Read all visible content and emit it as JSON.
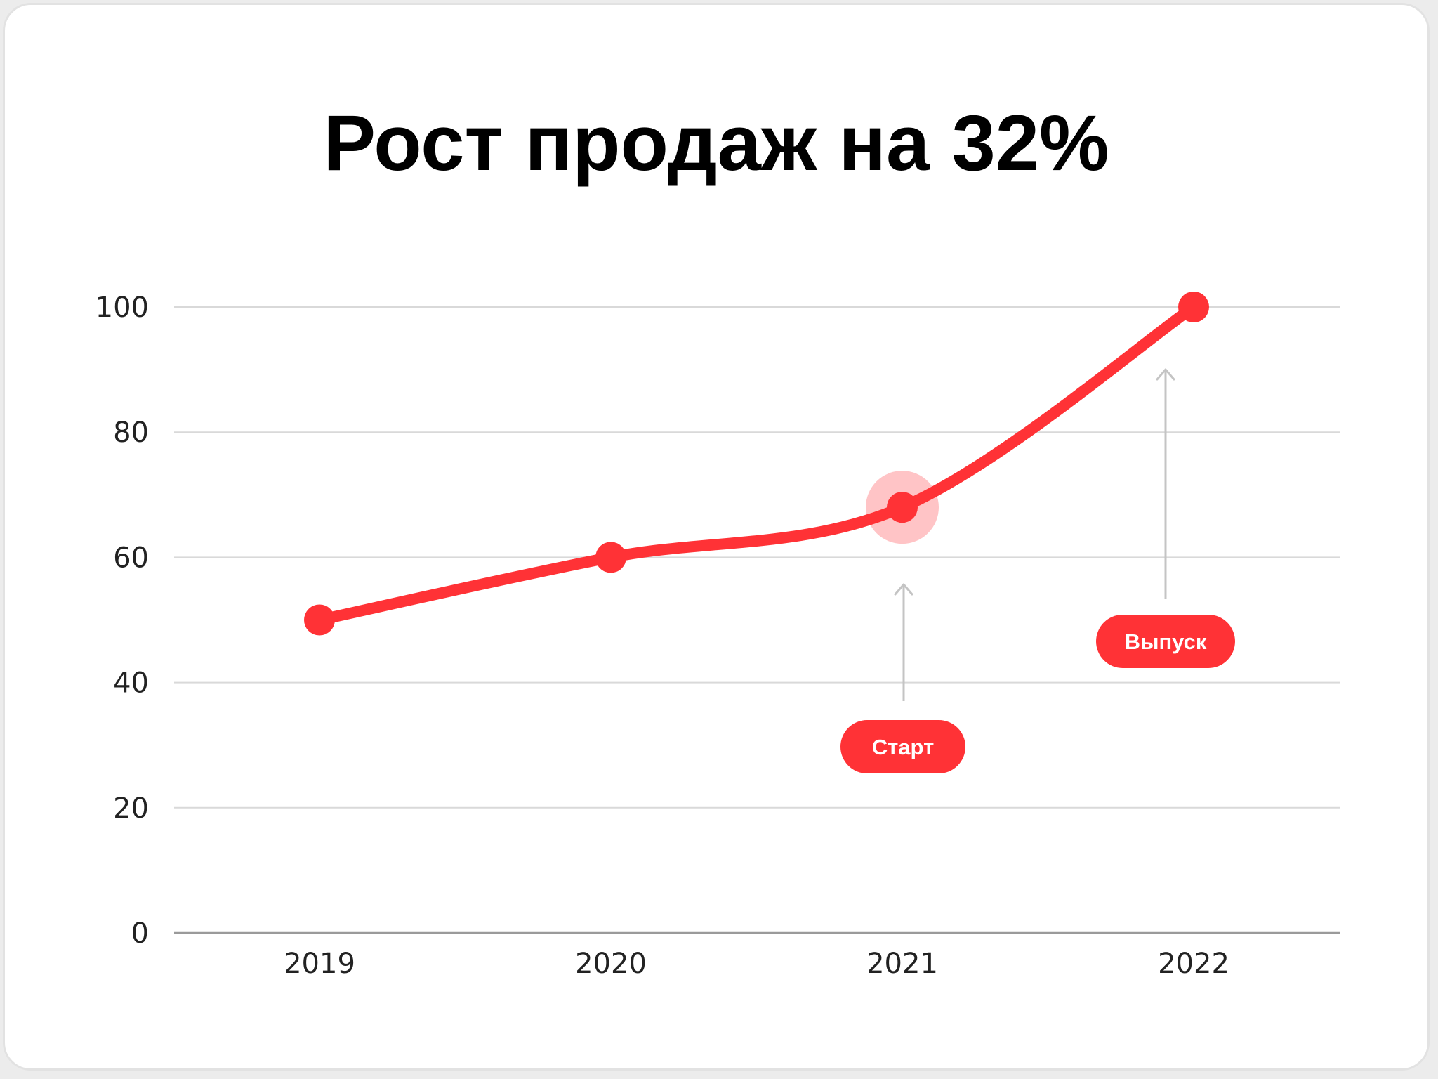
{
  "colors": {
    "line": "#ff3236",
    "halo": "#ffc4c6",
    "grid": "#d9d9d9",
    "axis": "#9a9a9a",
    "arrow": "#c4c4c4",
    "pill": "#ff3236"
  },
  "chart_data": {
    "type": "line",
    "title": "Рост продаж на 32%",
    "categories": [
      "2019",
      "2020",
      "2021",
      "2022"
    ],
    "series": [
      {
        "values": [
          50,
          60,
          68,
          100
        ]
      }
    ],
    "ylim": [
      0,
      100
    ],
    "yticks": [
      0,
      20,
      40,
      60,
      80,
      100
    ],
    "grid": true,
    "smooth": true,
    "highlight_index": 2,
    "annotations": [
      {
        "label": "Старт",
        "target_index": 2,
        "direction": "up-from-below"
      },
      {
        "label": "Выпуск",
        "target_index": 3,
        "direction": "up-from-below"
      }
    ]
  }
}
